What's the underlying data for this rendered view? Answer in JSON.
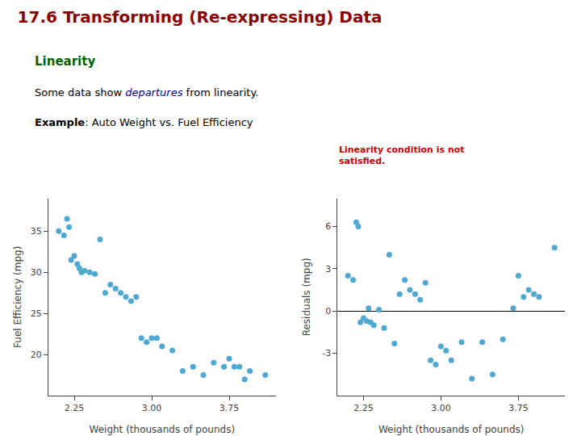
{
  "chart_data": [
    {
      "type": "scatter",
      "title": {
        "text": "17.6 Transforming (Re-expressing) Data",
        "color": "#8B0000"
      },
      "subtitle": {
        "text": "Linearity",
        "color": "#006400"
      },
      "annotations": [
        [
          {
            "text": "Some data show "
          },
          {
            "text": "departures",
            "color": "#00008B"
          },
          {
            "text": " from linearity."
          }
        ],
        [
          {
            "text": "Example"
          },
          {
            "text": ": Auto Weight vs. Fuel Efficiency"
          }
        ]
      ],
      "xlabel": "Weight (thousands of pounds)",
      "ylabel": "Fuel Efficiency (mpg)",
      "color": "#4ea8d2",
      "x": [
        2.1,
        2.15,
        2.18,
        2.2,
        2.22,
        2.25,
        2.28,
        2.3,
        2.32,
        2.35,
        2.4,
        2.45,
        2.5,
        2.55,
        2.6,
        2.65,
        2.7,
        2.75,
        2.8,
        2.85,
        2.9,
        2.95,
        3.0,
        3.05,
        3.1,
        3.2,
        3.3,
        3.4,
        3.5,
        3.6,
        3.7,
        3.75,
        3.8,
        3.85,
        3.9,
        3.95,
        4.1
      ],
      "values": [
        35.0,
        34.5,
        36.5,
        35.5,
        31.5,
        32.0,
        31.0,
        30.5,
        30.0,
        30.2,
        30.0,
        29.8,
        34.0,
        27.5,
        28.5,
        28.0,
        27.5,
        27.0,
        26.5,
        27.0,
        22.0,
        21.5,
        22.0,
        22.0,
        21.0,
        20.5,
        18.0,
        18.5,
        17.5,
        19.0,
        18.5,
        19.5,
        18.5,
        18.5,
        17.0,
        18.0,
        17.5
      ],
      "xlim": [
        2.0,
        4.2
      ],
      "xticks": [
        2.25,
        {
          "value": 3.0,
          "label": "3.00"
        },
        3.75
      ],
      "ylim": [
        15,
        39
      ],
      "yticks": [
        20,
        25,
        30,
        35
      ],
      "grid": false
    },
    {
      "type": "scatter",
      "annotations": [
        [
          {
            "text": "Linearity condition is not\nsatisfied.",
            "color": "#CC0000"
          }
        ]
      ],
      "xlabel": "Weight (thousands of pounds)",
      "ylabel": "Residuals (mpg)",
      "color": "#4ea8d2",
      "x": [
        2.1,
        2.15,
        2.18,
        2.2,
        2.22,
        2.25,
        2.28,
        2.3,
        2.32,
        2.35,
        2.4,
        2.45,
        2.5,
        2.55,
        2.6,
        2.65,
        2.7,
        2.75,
        2.8,
        2.85,
        2.9,
        2.95,
        3.0,
        3.05,
        3.1,
        3.2,
        3.3,
        3.4,
        3.5,
        3.6,
        3.7,
        3.75,
        3.8,
        3.85,
        3.9,
        3.95,
        4.1
      ],
      "values": [
        2.5,
        2.2,
        6.3,
        6.0,
        -0.8,
        -0.5,
        -0.7,
        0.2,
        -0.8,
        -1.0,
        0.1,
        -1.2,
        4.0,
        -2.3,
        1.2,
        2.2,
        1.5,
        1.2,
        0.8,
        2.0,
        -3.5,
        -3.8,
        -2.5,
        -2.8,
        -3.5,
        -2.2,
        -4.8,
        -2.2,
        -4.5,
        -2.0,
        0.2,
        2.5,
        1.0,
        1.5,
        1.2,
        1.0,
        4.5
      ],
      "xlim": [
        2.0,
        4.2
      ],
      "xticks": [
        2.25,
        {
          "value": 3.0,
          "label": "3.00"
        },
        3.75
      ],
      "ylim": [
        -6,
        8
      ],
      "yticks": [
        -3,
        0,
        3,
        6
      ],
      "grid": false
    }
  ]
}
